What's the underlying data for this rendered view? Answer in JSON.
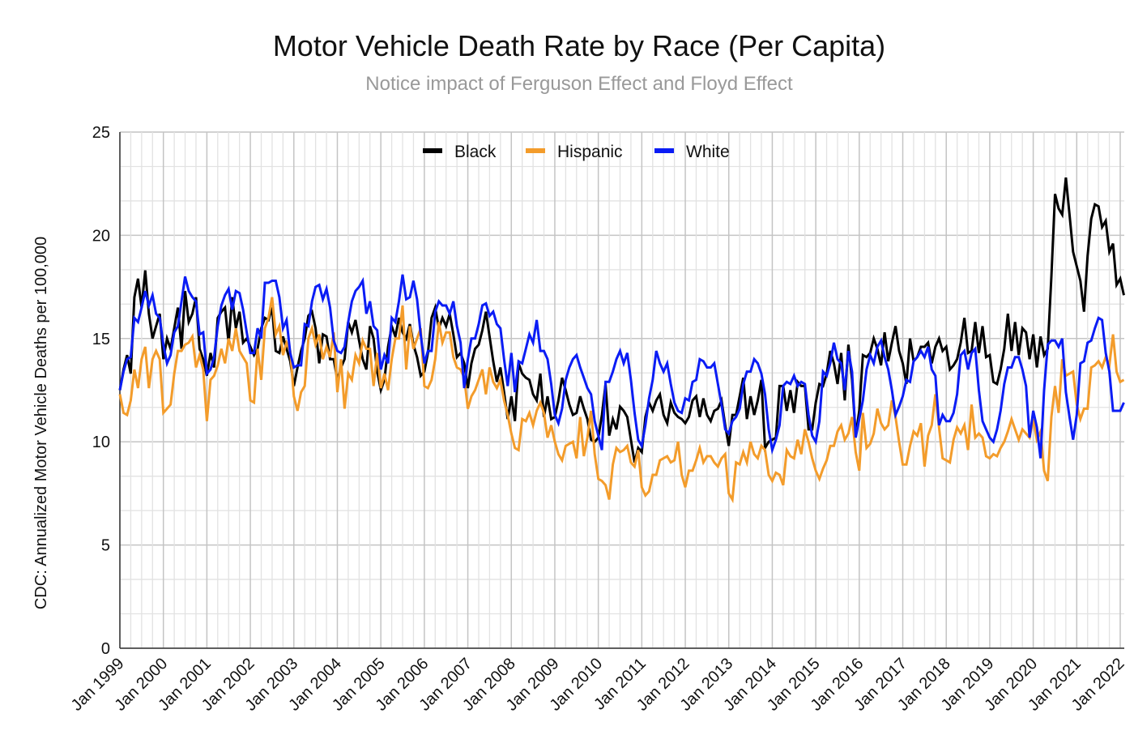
{
  "chart_data": {
    "type": "line",
    "title": "Motor Vehicle Death Rate by Race (Per Capita)",
    "subtitle": "Notice impact of Ferguson Effect and Floyd Effect",
    "ylabel": "CDC: Annualized Motor Vehicle Deaths per 100,000",
    "xlabel": "",
    "x_start": "Jan 1999",
    "x_frequency": "monthly",
    "x_end": "Feb 2022",
    "xticks": [
      "Jan 1999",
      "Jan 2000",
      "Jan 2001",
      "Jan 2002",
      "Jan 2003",
      "Jan 2004",
      "Jan 2005",
      "Jan 2006",
      "Jan 2007",
      "Jan 2008",
      "Jan 2009",
      "Jan 2010",
      "Jan 2011",
      "Jan 2012",
      "Jan 2013",
      "Jan 2014",
      "Jan 2015",
      "Jan 2016",
      "Jan 2017",
      "Jan 2018",
      "Jan 2019",
      "Jan 2020",
      "Jan 2021",
      "Jan 2022"
    ],
    "yticks": [
      "0",
      "5",
      "10",
      "15",
      "20",
      "25"
    ],
    "ylim": [
      0,
      25
    ],
    "grid": true,
    "legend_position": "top-center",
    "series": [
      {
        "name": "Black",
        "color": "#000000",
        "values": [
          12.5,
          13.5,
          14.2,
          13.3,
          17,
          17.9,
          16.5,
          18.3,
          16.2,
          15,
          15.6,
          16.2,
          14,
          15,
          14.5,
          15.5,
          16.5,
          14.5,
          17.3,
          15.8,
          16.2,
          17,
          14.5,
          14,
          13.2,
          14.3,
          13.6,
          16,
          16.3,
          16.5,
          14.8,
          17,
          15.5,
          16.3,
          14.8,
          15,
          14.6,
          14.2,
          14.5,
          15.5,
          16,
          15.9,
          16.5,
          14.4,
          14.3,
          15.1,
          14.5,
          13.9,
          12.7,
          13.6,
          14.4,
          15,
          16.1,
          16.3,
          15.5,
          13.8,
          15.2,
          15.1,
          14,
          14,
          13,
          13.6,
          14,
          15.8,
          15.3,
          15.9,
          14.9,
          14,
          13.5,
          15.6,
          15,
          13.4,
          12.5,
          13,
          14.6,
          15.6,
          15.1,
          16,
          15.3,
          15,
          15.7,
          14.7,
          14.1,
          13.2,
          13.4,
          14.3,
          16,
          16.5,
          15.5,
          16,
          15.6,
          16.2,
          15.2,
          14.1,
          14.3,
          13.8,
          12.6,
          13.8,
          14.5,
          14.7,
          15.4,
          16.3,
          15.1,
          13.9,
          12.9,
          13.6,
          12.4,
          11.1,
          12.2,
          11,
          13.8,
          13.3,
          13.1,
          13,
          12.3,
          12,
          13.3,
          11.2,
          12.2,
          11.1,
          11.2,
          12,
          13.1,
          12.5,
          11.8,
          11.3,
          11.4,
          12.2,
          11.6,
          11.1,
          10.1,
          10,
          10.2,
          11.3,
          12.8,
          10.3,
          11.1,
          10.6,
          11.7,
          11.5,
          11.2,
          10.1,
          9,
          9.7,
          9.5,
          11.2,
          11.9,
          11.5,
          12,
          12.3,
          11.3,
          10.9,
          11.9,
          11.4,
          11.2,
          11.1,
          10.9,
          11.2,
          12,
          12.2,
          11.2,
          12.1,
          11.3,
          11,
          11.5,
          11.6,
          12,
          10.8,
          9.8,
          11.3,
          11.3,
          12.2,
          13.1,
          11.1,
          12.2,
          11.3,
          12,
          13,
          9.7,
          10,
          10.1,
          10.2,
          12.7,
          12.7,
          11.5,
          12.5,
          11.4,
          12.9,
          12.7,
          12.7,
          10.6,
          10.6,
          11.9,
          12.8,
          12.7,
          13.3,
          14.4,
          13.8,
          12.8,
          14.3,
          12,
          14.7,
          13,
          10.3,
          11.5,
          14.2,
          14.1,
          14.3,
          15,
          14.5,
          13.7,
          15.3,
          13.9,
          14.8,
          15.6,
          14.4,
          13.8,
          12.8,
          15,
          13.9,
          14.1,
          14.6,
          14.6,
          14.8,
          13.8,
          14.6,
          15,
          14.4,
          14.6,
          13.5,
          13.7,
          14,
          14.8,
          16,
          14.3,
          14.4,
          15.8,
          14.3,
          15.6,
          14.1,
          14.2,
          12.9,
          12.8,
          13.5,
          14.5,
          16.2,
          14.4,
          15.8,
          14.2,
          15.5,
          15.3,
          14,
          15.2,
          13.6,
          15.1,
          14.2,
          14.5,
          18,
          22,
          21.3,
          21,
          22.8,
          21,
          19.2,
          18.5,
          17.8,
          16.3,
          19,
          20.8,
          21.5,
          21.4,
          20.4,
          20.7,
          19.2,
          19.6,
          17.6,
          17.9,
          17.1
        ]
      },
      {
        "name": "Hispanic",
        "color": "#F39C2B",
        "values": [
          12.3,
          11.4,
          11.3,
          12,
          13.5,
          12.6,
          14,
          14.6,
          12.6,
          14,
          14.4,
          14,
          11.4,
          11.6,
          11.8,
          13.3,
          14.4,
          14.4,
          14.7,
          14.8,
          15.1,
          13.6,
          14.2,
          13.5,
          11,
          13,
          13.2,
          13.7,
          14.5,
          13.8,
          15,
          14.4,
          15.5,
          14.4,
          14.1,
          13.8,
          12,
          11.9,
          14.5,
          13,
          15.5,
          16,
          17,
          15.2,
          15.6,
          14.2,
          14.8,
          14.4,
          12.2,
          11.5,
          12.4,
          12.7,
          15,
          15.5,
          14.7,
          15.2,
          14,
          14.6,
          14.1,
          15.3,
          12.4,
          14,
          11.6,
          13.3,
          13,
          14.2,
          13.8,
          14.9,
          14.5,
          14.5,
          12.7,
          14.3,
          12.6,
          13.3,
          12.5,
          14,
          15,
          15,
          16.6,
          13.5,
          15.6,
          14.5,
          15,
          15.5,
          12.7,
          12.6,
          13,
          14,
          15.8,
          14.8,
          15.3,
          15.3,
          14.1,
          13.6,
          13.5,
          13.1,
          11.6,
          12.2,
          12.5,
          13,
          13.5,
          12.3,
          13.6,
          12.9,
          12.6,
          13,
          12,
          11.3,
          10.4,
          9.7,
          9.6,
          11.1,
          11,
          11.4,
          10.8,
          11.5,
          11.9,
          11.4,
          10.2,
          10.8,
          10,
          9.4,
          9.1,
          9.8,
          9.9,
          10,
          9.2,
          11.2,
          9.3,
          10.2,
          11.5,
          9.4,
          8.2,
          8.1,
          7.9,
          7.2,
          8.9,
          9.7,
          9.5,
          9.6,
          9.8,
          9,
          8.8,
          9.6,
          7.8,
          7.4,
          7.6,
          8.4,
          8.4,
          9.1,
          9.2,
          9.3,
          9,
          9.1,
          10,
          8.4,
          7.8,
          8.6,
          8.6,
          9.1,
          9.7,
          9,
          9.3,
          9.3,
          9,
          8.8,
          9.2,
          9.4,
          7.5,
          7.2,
          9,
          8.9,
          9.5,
          9,
          10,
          9.4,
          9.2,
          9.8,
          9.6,
          8.4,
          8.1,
          8.5,
          8.4,
          7.9,
          9.6,
          9.3,
          9.2,
          10.1,
          9.4,
          10.6,
          10,
          9.2,
          8.6,
          8.2,
          8.7,
          9.1,
          9.8,
          9.8,
          10.5,
          10.8,
          10.1,
          10.4,
          11.2,
          9.5,
          8.6,
          11.4,
          9.7,
          9.9,
          10.4,
          11.6,
          10.9,
          10.6,
          10.8,
          12,
          11.2,
          10,
          8.9,
          8.9,
          9.8,
          10.5,
          10.3,
          10.9,
          8.8,
          10.3,
          10.8,
          12.3,
          10.7,
          9.2,
          9.1,
          9,
          10.1,
          10.7,
          10.4,
          10.8,
          9.6,
          11.8,
          10.2,
          10.4,
          10.2,
          9.3,
          9.2,
          9.4,
          9.3,
          9.7,
          10,
          10.5,
          11.1,
          10.6,
          10.1,
          10.6,
          10.4,
          10.2,
          11.1,
          10.1,
          10.5,
          8.6,
          8.1,
          11.2,
          12.7,
          11.4,
          14,
          13.2,
          13.3,
          13.4,
          11.8,
          11.1,
          11.6,
          11.6,
          13.6,
          13.7,
          13.9,
          13.6,
          14.1,
          13.7,
          15.2,
          13.4,
          12.9,
          13.0
        ]
      },
      {
        "name": "White",
        "color": "#0A1CF5",
        "values": [
          12.5,
          13.4,
          14,
          14.1,
          16,
          15.8,
          16.5,
          17.3,
          16.6,
          17.1,
          16.2,
          16,
          14.7,
          13.8,
          14.2,
          15.3,
          15.6,
          16.8,
          18,
          17.3,
          17,
          16.8,
          15.2,
          15.3,
          13.3,
          13.5,
          14.1,
          15.6,
          16.6,
          17.1,
          17.4,
          16.4,
          17.3,
          17.2,
          16.4,
          15.3,
          14.3,
          14.3,
          15.5,
          15,
          17.7,
          17.7,
          17.8,
          17.8,
          17,
          15.5,
          15.9,
          14.3,
          13.6,
          13.7,
          13.7,
          15.7,
          15.6,
          16.8,
          17.5,
          17.6,
          16.9,
          17.4,
          16.5,
          14.9,
          14.4,
          14.3,
          14.6,
          15.8,
          16.8,
          17.3,
          17.5,
          17.8,
          16.2,
          16.8,
          15.6,
          15.4,
          13.5,
          14.2,
          13.8,
          16,
          15.8,
          16.8,
          18.1,
          16.9,
          17,
          17.8,
          16.9,
          15.2,
          13.8,
          14.4,
          14.4,
          16.3,
          16.8,
          16.6,
          16.6,
          16.2,
          16.8,
          15.6,
          14.8,
          12.6,
          14,
          15,
          15,
          15.7,
          16.6,
          16.7,
          16.1,
          16.3,
          15.7,
          15.5,
          14,
          12.7,
          14.3,
          12.4,
          13.9,
          13.8,
          14.5,
          15.2,
          14.8,
          15.9,
          14.4,
          14.4,
          14,
          12.8,
          11.3,
          10.9,
          11.6,
          13,
          13.6,
          14,
          14.2,
          13.6,
          13.1,
          12.6,
          12.3,
          11,
          10.3,
          9.6,
          12.9,
          12.9,
          13.4,
          14,
          14.4,
          13.8,
          14.3,
          13,
          11.4,
          10.1,
          9.8,
          10.8,
          12.1,
          13,
          14.4,
          13.8,
          13.4,
          13.8,
          12.8,
          11.9,
          11.5,
          11.4,
          12.1,
          12,
          12.9,
          13,
          14,
          13.9,
          13.6,
          13.6,
          13.8,
          12.8,
          11.8,
          10.6,
          10.4,
          11,
          11.2,
          11.6,
          12.8,
          13.4,
          13.4,
          14,
          13.8,
          13.3,
          12.3,
          10.6,
          9.6,
          10.1,
          10.8,
          12.7,
          12.9,
          12.8,
          13.2,
          12.7,
          12.9,
          12.8,
          11.3,
          10.3,
          10,
          11,
          13.4,
          13.2,
          13.8,
          14.8,
          14,
          13.8,
          12.5,
          14.4,
          13.4,
          10.2,
          11.1,
          12,
          13.5,
          14.2,
          13.8,
          14.6,
          14.9,
          14.1,
          13.5,
          12.5,
          11.3,
          11.7,
          12.2,
          13,
          12.9,
          13.9,
          14.1,
          14.4,
          14.1,
          14.6,
          13.5,
          13.2,
          10.8,
          11.3,
          11,
          11,
          11.4,
          12.3,
          14.2,
          14.4,
          13.5,
          14.3,
          14.5,
          12.5,
          11,
          10.6,
          10.2,
          10,
          10.6,
          11.5,
          12.8,
          13.6,
          13.6,
          14.1,
          14.1,
          13.5,
          12.7,
          10.2,
          11.5,
          10.7,
          9.2,
          12.5,
          14.7,
          14.9,
          14.9,
          14.6,
          15,
          12.4,
          11.2,
          10.1,
          11.3,
          13.8,
          13.9,
          14.8,
          14.9,
          15.5,
          16,
          15.9,
          14.3,
          13.4,
          11.5,
          11.5,
          11.5,
          11.9
        ]
      }
    ]
  }
}
